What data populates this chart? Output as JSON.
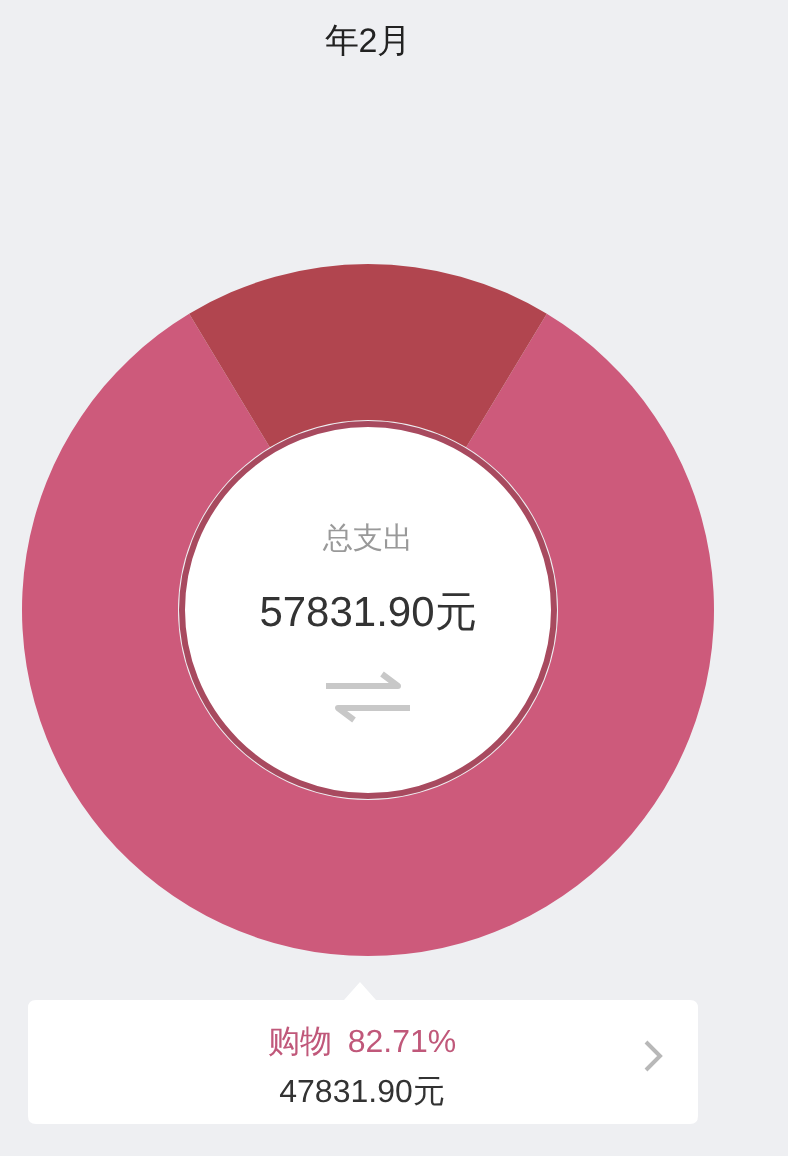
{
  "chart_data": {
    "type": "donut",
    "title": "年2月",
    "categories": [
      "购物",
      null
    ],
    "values": [
      82.71,
      17.29
    ],
    "colors": [
      "#cd5a7b",
      "#b1454f"
    ],
    "value_labels": [
      "82.71%",
      null
    ],
    "annotations": [
      "总支出",
      "57831.90元",
      "47831.90元"
    ]
  }
}
